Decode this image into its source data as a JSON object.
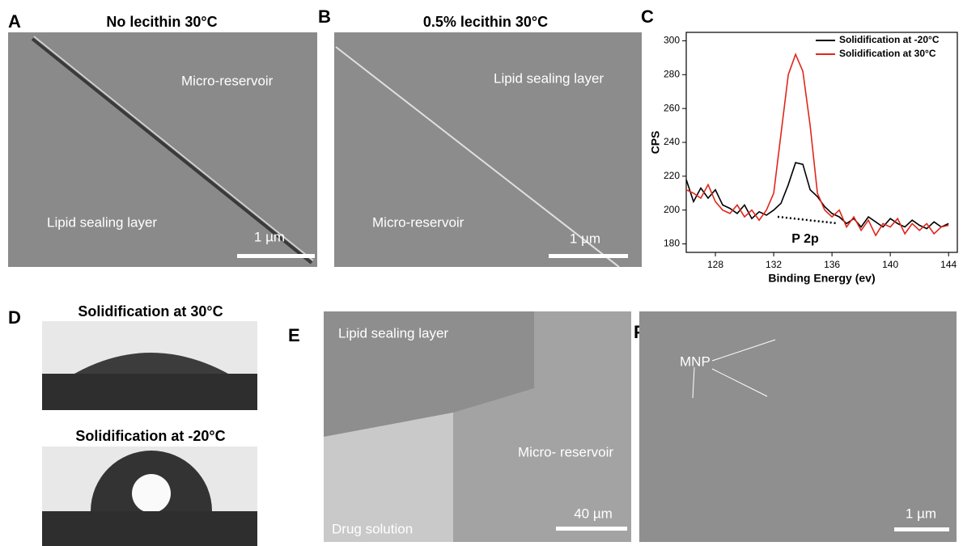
{
  "panels": {
    "a": {
      "label": "A",
      "title": "No lecithin 30°C",
      "labels": [
        "Micro-reservoir",
        "Lipid sealing layer"
      ],
      "scale_bar": "1 µm"
    },
    "b": {
      "label": "B",
      "title": "0.5% lecithin 30°C",
      "labels": [
        "Lipid sealing layer",
        "Micro-reservoir"
      ],
      "scale_bar": "1 µm"
    },
    "c": {
      "label": "C"
    },
    "d": {
      "label": "D",
      "titles": [
        "Solidification at 30°C",
        "Solidification at -20°C"
      ]
    },
    "e": {
      "label": "E",
      "labels": [
        "Lipid sealing layer",
        "Micro-\nreservoir",
        "Drug solution"
      ],
      "scale_bar": "40 µm"
    },
    "f": {
      "label": "F",
      "labels": [
        "MNP"
      ],
      "scale_bar": "1 µm"
    }
  },
  "chart_data": {
    "type": "line",
    "x_label": "Binding Energy (ev)",
    "y_label": "CPS",
    "annotation": "P 2p",
    "x": [
      126,
      126.5,
      127,
      127.5,
      128,
      128.5,
      129,
      129.5,
      130,
      130.5,
      131,
      131.5,
      132,
      132.5,
      133,
      133.5,
      134,
      134.5,
      135,
      135.5,
      136,
      136.5,
      137,
      137.5,
      138,
      138.5,
      139,
      139.5,
      140,
      140.5,
      141,
      141.5,
      142,
      142.5,
      143,
      143.5,
      144
    ],
    "series": [
      {
        "name": "Solidification at -20°C",
        "color": "#000000",
        "values": [
          218,
          205,
          213,
          207,
          212,
          203,
          201,
          198,
          203,
          195,
          199,
          197,
          200,
          204,
          215,
          228,
          227,
          212,
          208,
          202,
          198,
          196,
          192,
          195,
          190,
          196,
          193,
          190,
          195,
          192,
          190,
          194,
          191,
          189,
          193,
          190,
          192
        ]
      },
      {
        "name": "Solidification at 30°C",
        "color": "#e0261b",
        "values": [
          212,
          210,
          207,
          215,
          205,
          200,
          198,
          203,
          196,
          200,
          194,
          200,
          210,
          245,
          280,
          292,
          282,
          250,
          210,
          200,
          196,
          200,
          190,
          196,
          188,
          194,
          185,
          192,
          190,
          195,
          186,
          192,
          188,
          192,
          186,
          190,
          191
        ]
      }
    ],
    "xlim": [
      126,
      144.6
    ],
    "ylim": [
      175,
      305
    ],
    "xticks": [
      128,
      132,
      136,
      140,
      144
    ],
    "yticks": [
      180,
      200,
      220,
      240,
      260,
      280,
      300
    ]
  }
}
